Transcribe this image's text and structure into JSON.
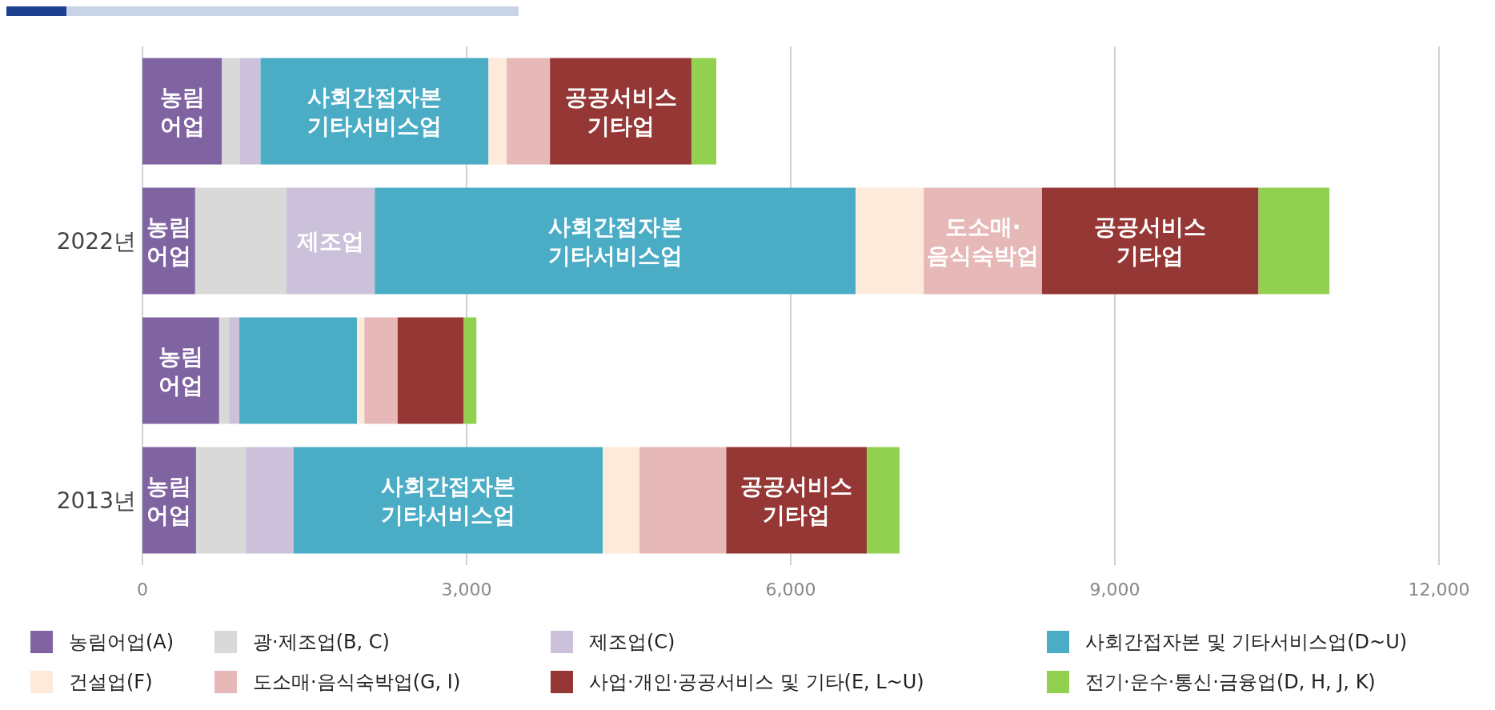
{
  "chart_data": {
    "type": "bar",
    "orientation": "horizontal",
    "stacked": true,
    "categories": [
      null,
      "2022년",
      null,
      "2013년"
    ],
    "series": [
      {
        "name": "농림어업(A)",
        "color": "#8064a2",
        "values": [
          736,
          488,
          710,
          496
        ],
        "value_labels": [
          "농림\n어업",
          "농림\n어업",
          "농림\n어업",
          "농림\n어업"
        ]
      },
      {
        "name": "광·제조업(B, C)",
        "color": "#d9d9d9",
        "values": [
          164,
          843,
          92,
          461
        ]
      },
      {
        "name": "제조업(C)",
        "color": "#ccc1da",
        "values": [
          193,
          819,
          95,
          442
        ],
        "value_labels": [
          null,
          "제조업",
          null,
          null
        ]
      },
      {
        "name": "사회간접자본 및 기타서비스업(D~U)",
        "color": "#4bacc6",
        "values": [
          2110,
          4450,
          1089,
          2862
        ],
        "value_labels": [
          "사회간접자본\n기타서비스업",
          "사회간접자본\n기타서비스업",
          null,
          "사회간접자본\n기타서비스업"
        ]
      },
      {
        "name": "건설업(F)",
        "color": "#fdeada",
        "values": [
          168,
          631,
          68,
          340
        ]
      },
      {
        "name": "도소매·음식숙박업(G, I)",
        "color": "#e6b9b8",
        "values": [
          401,
          1094,
          308,
          802
        ],
        "value_labels": [
          null,
          "도소매·\n음식숙박업",
          null,
          null
        ]
      },
      {
        "name": "사업·개인·공공서비스 및 기타(E, L~U)",
        "color": "#953735",
        "values": [
          1309,
          2005,
          612,
          1303
        ],
        "value_labels": [
          "공공서비스\n기타업",
          "공공서비스\n기타업",
          null,
          "공공서비스\n기타업"
        ]
      },
      {
        "name": "전기·운수·통신·금융업(D, H, J, K)",
        "color": "#92d050",
        "values": [
          230,
          656,
          117,
          301
        ]
      }
    ],
    "xlim": [
      0,
      12000
    ],
    "xticks": [
      0,
      {
        "value": 3000,
        "label": "3,000"
      },
      {
        "value": 6000,
        "label": "6,000"
      },
      {
        "value": 9000,
        "label": "9,000"
      },
      {
        "value": 12000,
        "label": "12,000"
      }
    ],
    "grid": "x",
    "legend": "bottom"
  }
}
